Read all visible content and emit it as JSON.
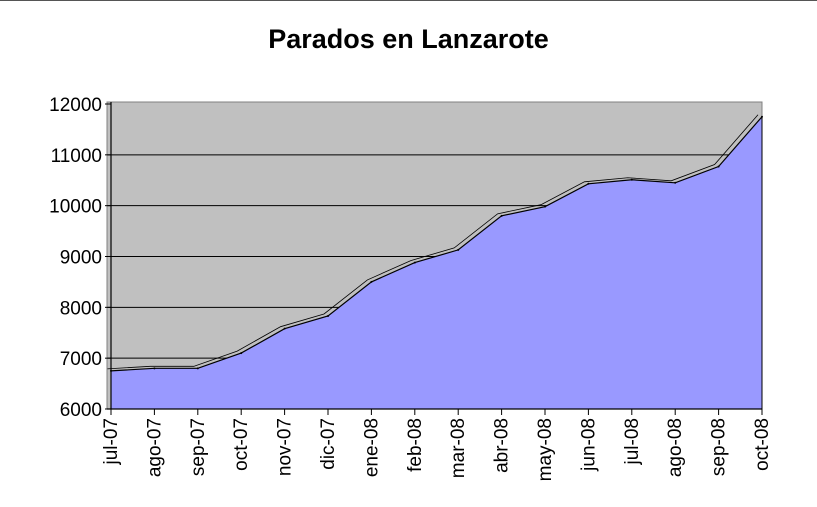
{
  "chart_data": {
    "type": "area",
    "title": "Parados en Lanzarote",
    "xlabel": "",
    "ylabel": "",
    "categories": [
      "jul-07",
      "ago-07",
      "sep-07",
      "oct-07",
      "nov-07",
      "dic-07",
      "ene-08",
      "feb-08",
      "mar-08",
      "abr-08",
      "may-08",
      "jun-08",
      "jul-08",
      "ago-08",
      "sep-08",
      "oct-08"
    ],
    "values": [
      6750,
      6800,
      6800,
      7100,
      7580,
      7830,
      8500,
      8880,
      9130,
      9800,
      9980,
      10430,
      10510,
      10450,
      10770,
      11750
    ],
    "ylim": [
      6000,
      12000
    ],
    "yticks": [
      6000,
      7000,
      8000,
      9000,
      10000,
      11000,
      12000
    ],
    "grid": true,
    "legend": "none",
    "colors": {
      "area_fill": "#9999ff",
      "plot_background": "#c0c0c0",
      "gridline": "#000000",
      "outline": "#000000"
    }
  }
}
